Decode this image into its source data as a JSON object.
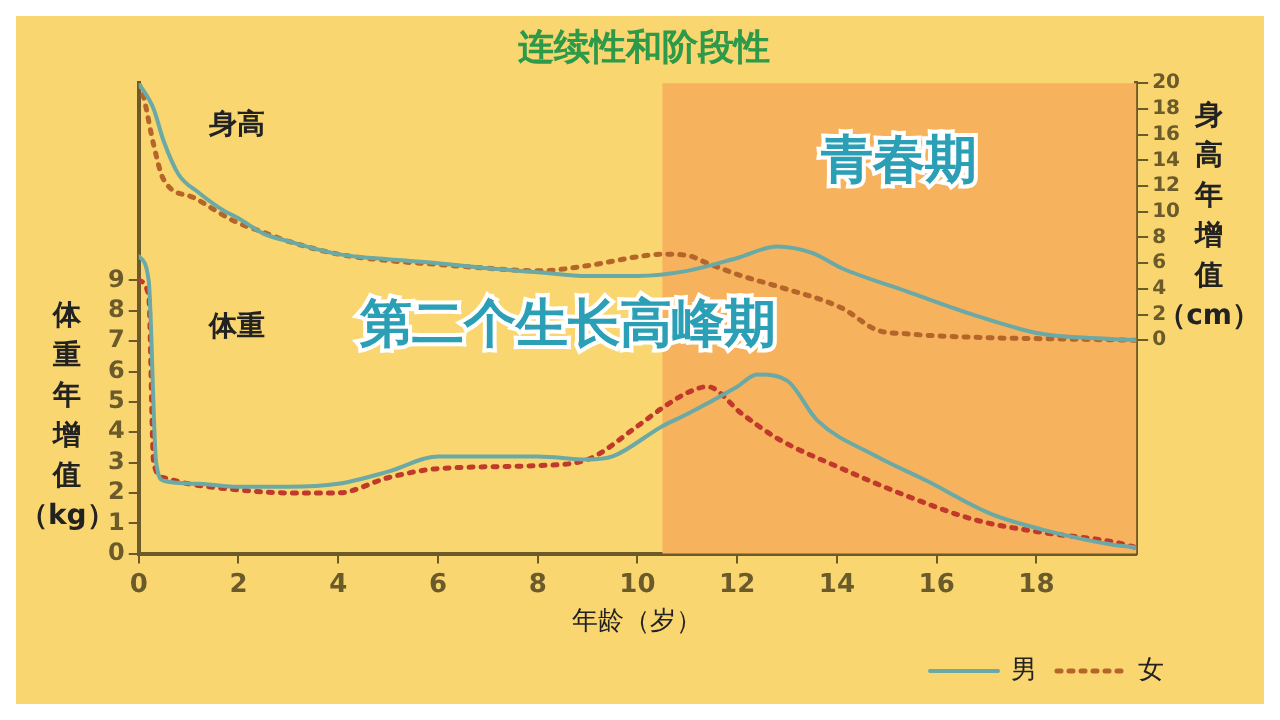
{
  "chart_data": {
    "type": "line",
    "title": "连续性和阶段性",
    "xlabel": "年龄（岁）",
    "ylabel": "体重年增值（kg）",
    "y2label": "身高年增值（cm）",
    "xlim": [
      0,
      20
    ],
    "xticks": [
      0,
      2,
      4,
      6,
      8,
      10,
      12,
      14,
      16,
      18
    ],
    "ylim": [
      0,
      15.5
    ],
    "yticks": [
      0,
      1,
      2,
      3,
      4,
      5,
      6,
      7,
      8,
      9
    ],
    "y2lim": [
      -16.6,
      20
    ],
    "y2ticks": [
      0,
      2,
      4,
      6,
      8,
      10,
      12,
      14,
      16,
      18,
      20
    ],
    "series": [
      {
        "name": "男",
        "color": "#6aa9a5",
        "axis": "y2",
        "line_style": "solid",
        "x": [
          0,
          0.3,
          0.5,
          0.8,
          1.2,
          1.7,
          2,
          2.5,
          3,
          4,
          5,
          6,
          7,
          8,
          9,
          10,
          11,
          12,
          12.8,
          13.5,
          14.1,
          15.4,
          16.8,
          18.1,
          19.5,
          20
        ],
        "values": [
          20,
          18,
          15.5,
          12.9,
          11.5,
          10.1,
          9.5,
          8.3,
          7.7,
          6.7,
          6.3,
          6.0,
          5.6,
          5.3,
          5.0,
          5.0,
          5.4,
          6.4,
          7.3,
          6.8,
          5.6,
          3.8,
          1.9,
          0.5,
          0.1,
          0
        ]
      },
      {
        "name": "女",
        "color": "#b5652a",
        "axis": "y2",
        "line_style": "dotted",
        "x": [
          0,
          0.1,
          0.3,
          0.5,
          1.1,
          1.9,
          2.5,
          3,
          4,
          5,
          6,
          7,
          8,
          9,
          10,
          10.5,
          11,
          11.4,
          12.1,
          12.8,
          14.1,
          14.8,
          15.4,
          17,
          18.5,
          20
        ],
        "values": [
          20,
          18.9,
          15.2,
          12.5,
          11.1,
          9.3,
          8.4,
          7.7,
          6.7,
          6.2,
          5.9,
          5.6,
          5.4,
          5.8,
          6.5,
          6.7,
          6.6,
          6.0,
          5.0,
          4.2,
          2.5,
          0.8,
          0.5,
          0.2,
          0.1,
          0
        ]
      },
      {
        "color": "#6aa9a5",
        "axis": "y",
        "line_style": "solid",
        "x": [
          0,
          0.2,
          0.35,
          0.5,
          1.2,
          2,
          3,
          4,
          5,
          6,
          7,
          8,
          9,
          9.5,
          10.5,
          11,
          12,
          12.4,
          13,
          13.6,
          14.8,
          15.8,
          17.1,
          18.1,
          19.5,
          20
        ],
        "values": [
          9.8,
          9,
          3.0,
          2.4,
          2.3,
          2.2,
          2.2,
          2.3,
          2.7,
          3.2,
          3.2,
          3.2,
          3.1,
          3.2,
          4.2,
          4.6,
          5.5,
          5.9,
          5.7,
          4.4,
          3.2,
          2.4,
          1.3,
          0.8,
          0.3,
          0.2
        ]
      },
      {
        "color": "#c0392b",
        "axis": "y",
        "line_style": "dotted",
        "x": [
          0,
          0.2,
          0.3,
          0.5,
          1,
          2,
          3,
          4,
          5,
          6,
          8,
          9,
          10,
          10.5,
          11,
          11.4,
          12.1,
          12.8,
          14.1,
          15.4,
          16.8,
          18.1,
          19.5,
          20
        ],
        "values": [
          9,
          8.5,
          3.0,
          2.5,
          2.3,
          2.1,
          2.0,
          2.0,
          2.5,
          2.8,
          2.9,
          3.1,
          4.2,
          4.8,
          5.3,
          5.5,
          4.6,
          3.8,
          2.8,
          1.9,
          1.1,
          0.7,
          0.4,
          0.2
        ]
      }
    ],
    "bands": [
      {
        "axis": "x",
        "from": 10.5,
        "to": 20,
        "label": "青春期",
        "color": "#f7b25e"
      }
    ],
    "annotations": [
      "身高",
      "体重",
      "第二个生长高峰期"
    ],
    "marker": "none",
    "grid": false,
    "legend": "bottom"
  }
}
